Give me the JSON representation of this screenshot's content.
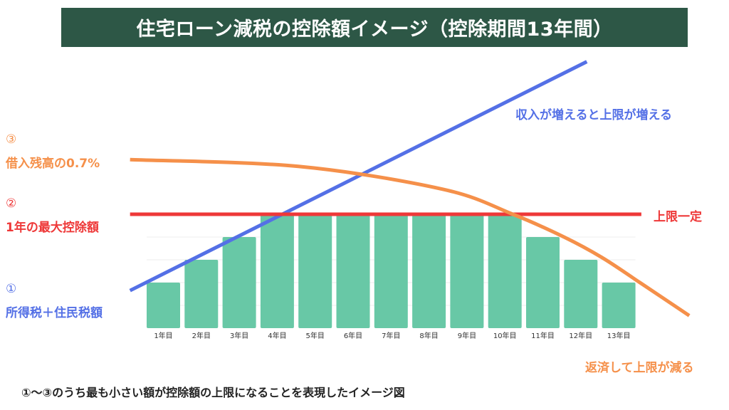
{
  "title": "住宅ローン減税の控除額イメージ（控除期間13年間）",
  "labels": {
    "item3_number": "③",
    "item3_text": "借入残高の0.7%",
    "item2_number": "②",
    "item2_text": "1年の最大控除額",
    "item1_number": "①",
    "item1_text": "所得税＋住民税額",
    "blue_annotation": "収入が増えると上限が増える",
    "red_annotation": "上限一定",
    "orange_annotation": "返済して上限が減る"
  },
  "footnote": "①〜③のうち最も小さい額が控除額の上限になることを表現したイメージ図",
  "colors": {
    "banner": "#2d5746",
    "bar": "#68c8a6",
    "income_line": "#5470e6",
    "max_line": "#ee3838",
    "balance_curve": "#f5904a",
    "grid": "#eeeeee"
  },
  "chart_data": {
    "type": "bar",
    "title": "住宅ローン減税の控除額イメージ（控除期間13年間）",
    "xlabel": "",
    "ylabel": "",
    "categories": [
      "1年目",
      "2年目",
      "3年目",
      "4年目",
      "5年目",
      "6年目",
      "7年目",
      "8年目",
      "9年目",
      "10年目",
      "11年目",
      "12年目",
      "13年目"
    ],
    "values": [
      2,
      3,
      4,
      5,
      5,
      5,
      5,
      5,
      5,
      5,
      4,
      3,
      2
    ],
    "ylim": [
      0,
      11.5
    ],
    "grid": true,
    "overlays": [
      {
        "name": "所得税＋住民税額",
        "type": "line",
        "x": [
          0.05,
          11.6
        ],
        "y": [
          1.65,
          11.7
        ]
      },
      {
        "name": "1年の最大控除額",
        "type": "hline",
        "x": [
          0.05,
          13.6
        ],
        "y": 5.0
      },
      {
        "name": "借入残高の0.7%",
        "type": "curve",
        "x": [
          0.05,
          4.0,
          7.8,
          9.65,
          11.0,
          12.0,
          13.0,
          14.3
        ],
        "y": [
          7.4,
          7.1,
          6.1,
          5.0,
          4.0,
          3.1,
          2.0,
          0.55
        ]
      }
    ]
  }
}
